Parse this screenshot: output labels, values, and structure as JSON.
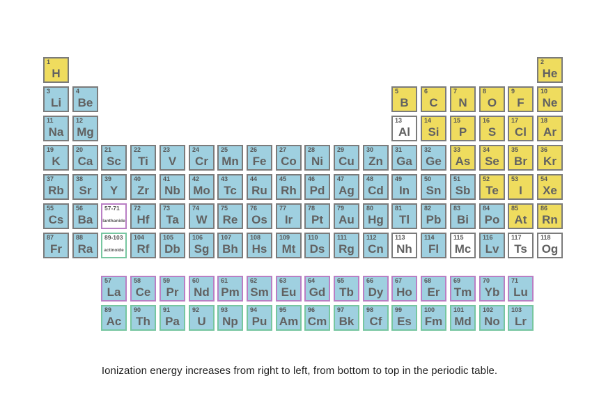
{
  "caption": "Ionization energy increases from right to left, from bottom to top in the periodic table.",
  "colors": {
    "nonmetal_yellow": "#efdc5e",
    "metal_blue": "#9fd0e0",
    "unknown_white": "#ffffff",
    "cell_border": "#7b7b7b",
    "lanthanide_border": "#b97fc4",
    "actinide_border": "#77c6a0",
    "number_text": "#555555",
    "symbol_text": "#616161",
    "caption_text": "#1f1f1f"
  },
  "placeholders": [
    {
      "range": "57-71",
      "label": "lanthanide",
      "row": 6,
      "col": 3,
      "type": "lan"
    },
    {
      "range": "89-103",
      "label": "actinoide",
      "row": 7,
      "col": 3,
      "type": "act"
    }
  ],
  "elements": [
    {
      "n": 1,
      "sym": "H",
      "row": 1,
      "col": 1,
      "c": "y"
    },
    {
      "n": 2,
      "sym": "He",
      "row": 1,
      "col": 18,
      "c": "y"
    },
    {
      "n": 3,
      "sym": "Li",
      "row": 2,
      "col": 1,
      "c": "b"
    },
    {
      "n": 4,
      "sym": "Be",
      "row": 2,
      "col": 2,
      "c": "b"
    },
    {
      "n": 5,
      "sym": "B",
      "row": 2,
      "col": 13,
      "c": "y"
    },
    {
      "n": 6,
      "sym": "C",
      "row": 2,
      "col": 14,
      "c": "y"
    },
    {
      "n": 7,
      "sym": "N",
      "row": 2,
      "col": 15,
      "c": "y"
    },
    {
      "n": 8,
      "sym": "O",
      "row": 2,
      "col": 16,
      "c": "y"
    },
    {
      "n": 9,
      "sym": "F",
      "row": 2,
      "col": 17,
      "c": "y"
    },
    {
      "n": 10,
      "sym": "Ne",
      "row": 2,
      "col": 18,
      "c": "y"
    },
    {
      "n": 11,
      "sym": "Na",
      "row": 3,
      "col": 1,
      "c": "b"
    },
    {
      "n": 12,
      "sym": "Mg",
      "row": 3,
      "col": 2,
      "c": "b"
    },
    {
      "n": 13,
      "sym": "Al",
      "row": 3,
      "col": 13,
      "c": "w"
    },
    {
      "n": 14,
      "sym": "Si",
      "row": 3,
      "col": 14,
      "c": "y"
    },
    {
      "n": 15,
      "sym": "P",
      "row": 3,
      "col": 15,
      "c": "y"
    },
    {
      "n": 16,
      "sym": "S",
      "row": 3,
      "col": 16,
      "c": "y"
    },
    {
      "n": 17,
      "sym": "Cl",
      "row": 3,
      "col": 17,
      "c": "y"
    },
    {
      "n": 18,
      "sym": "Ar",
      "row": 3,
      "col": 18,
      "c": "y"
    },
    {
      "n": 19,
      "sym": "K",
      "row": 4,
      "col": 1,
      "c": "b"
    },
    {
      "n": 20,
      "sym": "Ca",
      "row": 4,
      "col": 2,
      "c": "b"
    },
    {
      "n": 21,
      "sym": "Sc",
      "row": 4,
      "col": 3,
      "c": "b"
    },
    {
      "n": 22,
      "sym": "Ti",
      "row": 4,
      "col": 4,
      "c": "b"
    },
    {
      "n": 23,
      "sym": "V",
      "row": 4,
      "col": 5,
      "c": "b"
    },
    {
      "n": 24,
      "sym": "Cr",
      "row": 4,
      "col": 6,
      "c": "b"
    },
    {
      "n": 25,
      "sym": "Mn",
      "row": 4,
      "col": 7,
      "c": "b"
    },
    {
      "n": 26,
      "sym": "Fe",
      "row": 4,
      "col": 8,
      "c": "b"
    },
    {
      "n": 27,
      "sym": "Co",
      "row": 4,
      "col": 9,
      "c": "b"
    },
    {
      "n": 28,
      "sym": "Ni",
      "row": 4,
      "col": 10,
      "c": "b"
    },
    {
      "n": 29,
      "sym": "Cu",
      "row": 4,
      "col": 11,
      "c": "b"
    },
    {
      "n": 30,
      "sym": "Zn",
      "row": 4,
      "col": 12,
      "c": "b"
    },
    {
      "n": 31,
      "sym": "Ga",
      "row": 4,
      "col": 13,
      "c": "b"
    },
    {
      "n": 32,
      "sym": "Ge",
      "row": 4,
      "col": 14,
      "c": "b"
    },
    {
      "n": 33,
      "sym": "As",
      "row": 4,
      "col": 15,
      "c": "y"
    },
    {
      "n": 34,
      "sym": "Se",
      "row": 4,
      "col": 16,
      "c": "y"
    },
    {
      "n": 35,
      "sym": "Br",
      "row": 4,
      "col": 17,
      "c": "y"
    },
    {
      "n": 36,
      "sym": "Kr",
      "row": 4,
      "col": 18,
      "c": "y"
    },
    {
      "n": 37,
      "sym": "Rb",
      "row": 5,
      "col": 1,
      "c": "b"
    },
    {
      "n": 38,
      "sym": "Sr",
      "row": 5,
      "col": 2,
      "c": "b"
    },
    {
      "n": 39,
      "sym": "Y",
      "row": 5,
      "col": 3,
      "c": "b"
    },
    {
      "n": 40,
      "sym": "Zr",
      "row": 5,
      "col": 4,
      "c": "b"
    },
    {
      "n": 41,
      "sym": "Nb",
      "row": 5,
      "col": 5,
      "c": "b"
    },
    {
      "n": 42,
      "sym": "Mo",
      "row": 5,
      "col": 6,
      "c": "b"
    },
    {
      "n": 43,
      "sym": "Tc",
      "row": 5,
      "col": 7,
      "c": "b"
    },
    {
      "n": 44,
      "sym": "Ru",
      "row": 5,
      "col": 8,
      "c": "b"
    },
    {
      "n": 45,
      "sym": "Rh",
      "row": 5,
      "col": 9,
      "c": "b"
    },
    {
      "n": 46,
      "sym": "Pd",
      "row": 5,
      "col": 10,
      "c": "b"
    },
    {
      "n": 47,
      "sym": "Ag",
      "row": 5,
      "col": 11,
      "c": "b"
    },
    {
      "n": 48,
      "sym": "Cd",
      "row": 5,
      "col": 12,
      "c": "b"
    },
    {
      "n": 49,
      "sym": "In",
      "row": 5,
      "col": 13,
      "c": "b"
    },
    {
      "n": 50,
      "sym": "Sn",
      "row": 5,
      "col": 14,
      "c": "b"
    },
    {
      "n": 51,
      "sym": "Sb",
      "row": 5,
      "col": 15,
      "c": "b"
    },
    {
      "n": 52,
      "sym": "Te",
      "row": 5,
      "col": 16,
      "c": "y"
    },
    {
      "n": 53,
      "sym": "I",
      "row": 5,
      "col": 17,
      "c": "y"
    },
    {
      "n": 54,
      "sym": "Xe",
      "row": 5,
      "col": 18,
      "c": "y"
    },
    {
      "n": 55,
      "sym": "Cs",
      "row": 6,
      "col": 1,
      "c": "b"
    },
    {
      "n": 56,
      "sym": "Ba",
      "row": 6,
      "col": 2,
      "c": "b"
    },
    {
      "n": 72,
      "sym": "Hf",
      "row": 6,
      "col": 4,
      "c": "b"
    },
    {
      "n": 73,
      "sym": "Ta",
      "row": 6,
      "col": 5,
      "c": "b"
    },
    {
      "n": 74,
      "sym": "W",
      "row": 6,
      "col": 6,
      "c": "b"
    },
    {
      "n": 75,
      "sym": "Re",
      "row": 6,
      "col": 7,
      "c": "b"
    },
    {
      "n": 76,
      "sym": "Os",
      "row": 6,
      "col": 8,
      "c": "b"
    },
    {
      "n": 77,
      "sym": "Ir",
      "row": 6,
      "col": 9,
      "c": "b"
    },
    {
      "n": 78,
      "sym": "Pt",
      "row": 6,
      "col": 10,
      "c": "b"
    },
    {
      "n": 79,
      "sym": "Au",
      "row": 6,
      "col": 11,
      "c": "b"
    },
    {
      "n": 80,
      "sym": "Hg",
      "row": 6,
      "col": 12,
      "c": "b"
    },
    {
      "n": 81,
      "sym": "Tl",
      "row": 6,
      "col": 13,
      "c": "b"
    },
    {
      "n": 82,
      "sym": "Pb",
      "row": 6,
      "col": 14,
      "c": "b"
    },
    {
      "n": 83,
      "sym": "Bi",
      "row": 6,
      "col": 15,
      "c": "b"
    },
    {
      "n": 84,
      "sym": "Po",
      "row": 6,
      "col": 16,
      "c": "b"
    },
    {
      "n": 85,
      "sym": "At",
      "row": 6,
      "col": 17,
      "c": "y"
    },
    {
      "n": 86,
      "sym": "Rn",
      "row": 6,
      "col": 18,
      "c": "y"
    },
    {
      "n": 87,
      "sym": "Fr",
      "row": 7,
      "col": 1,
      "c": "b"
    },
    {
      "n": 88,
      "sym": "Ra",
      "row": 7,
      "col": 2,
      "c": "b"
    },
    {
      "n": 104,
      "sym": "Rf",
      "row": 7,
      "col": 4,
      "c": "b"
    },
    {
      "n": 105,
      "sym": "Db",
      "row": 7,
      "col": 5,
      "c": "b"
    },
    {
      "n": 106,
      "sym": "Sg",
      "row": 7,
      "col": 6,
      "c": "b"
    },
    {
      "n": 107,
      "sym": "Bh",
      "row": 7,
      "col": 7,
      "c": "b"
    },
    {
      "n": 108,
      "sym": "Hs",
      "row": 7,
      "col": 8,
      "c": "b"
    },
    {
      "n": 109,
      "sym": "Mt",
      "row": 7,
      "col": 9,
      "c": "b"
    },
    {
      "n": 110,
      "sym": "Ds",
      "row": 7,
      "col": 10,
      "c": "b"
    },
    {
      "n": 111,
      "sym": "Rg",
      "row": 7,
      "col": 11,
      "c": "b"
    },
    {
      "n": 112,
      "sym": "Cn",
      "row": 7,
      "col": 12,
      "c": "b"
    },
    {
      "n": 113,
      "sym": "Nh",
      "row": 7,
      "col": 13,
      "c": "w"
    },
    {
      "n": 114,
      "sym": "Fl",
      "row": 7,
      "col": 14,
      "c": "b"
    },
    {
      "n": 115,
      "sym": "Mc",
      "row": 7,
      "col": 15,
      "c": "w"
    },
    {
      "n": 116,
      "sym": "Lv",
      "row": 7,
      "col": 16,
      "c": "b"
    },
    {
      "n": 117,
      "sym": "Ts",
      "row": 7,
      "col": 17,
      "c": "w"
    },
    {
      "n": 118,
      "sym": "Og",
      "row": 7,
      "col": 18,
      "c": "w"
    },
    {
      "n": 57,
      "sym": "La",
      "row": 8,
      "col": 3,
      "c": "b",
      "s": "lan"
    },
    {
      "n": 58,
      "sym": "Ce",
      "row": 8,
      "col": 4,
      "c": "b",
      "s": "lan"
    },
    {
      "n": 59,
      "sym": "Pr",
      "row": 8,
      "col": 5,
      "c": "b",
      "s": "lan"
    },
    {
      "n": 60,
      "sym": "Nd",
      "row": 8,
      "col": 6,
      "c": "b",
      "s": "lan"
    },
    {
      "n": 61,
      "sym": "Pm",
      "row": 8,
      "col": 7,
      "c": "b",
      "s": "lan"
    },
    {
      "n": 62,
      "sym": "Sm",
      "row": 8,
      "col": 8,
      "c": "b",
      "s": "lan"
    },
    {
      "n": 63,
      "sym": "Eu",
      "row": 8,
      "col": 9,
      "c": "b",
      "s": "lan"
    },
    {
      "n": 64,
      "sym": "Gd",
      "row": 8,
      "col": 10,
      "c": "b",
      "s": "lan"
    },
    {
      "n": 65,
      "sym": "Tb",
      "row": 8,
      "col": 11,
      "c": "b",
      "s": "lan"
    },
    {
      "n": 66,
      "sym": "Dy",
      "row": 8,
      "col": 12,
      "c": "b",
      "s": "lan"
    },
    {
      "n": 67,
      "sym": "Ho",
      "row": 8,
      "col": 13,
      "c": "b",
      "s": "lan"
    },
    {
      "n": 68,
      "sym": "Er",
      "row": 8,
      "col": 14,
      "c": "b",
      "s": "lan"
    },
    {
      "n": 69,
      "sym": "Tm",
      "row": 8,
      "col": 15,
      "c": "b",
      "s": "lan"
    },
    {
      "n": 70,
      "sym": "Yb",
      "row": 8,
      "col": 16,
      "c": "b",
      "s": "lan"
    },
    {
      "n": 71,
      "sym": "Lu",
      "row": 8,
      "col": 17,
      "c": "b",
      "s": "lan"
    },
    {
      "n": 89,
      "sym": "Ac",
      "row": 9,
      "col": 3,
      "c": "b",
      "s": "act"
    },
    {
      "n": 90,
      "sym": "Th",
      "row": 9,
      "col": 4,
      "c": "b",
      "s": "act"
    },
    {
      "n": 91,
      "sym": "Pa",
      "row": 9,
      "col": 5,
      "c": "b",
      "s": "act"
    },
    {
      "n": 92,
      "sym": "U",
      "row": 9,
      "col": 6,
      "c": "b",
      "s": "act"
    },
    {
      "n": 93,
      "sym": "Np",
      "row": 9,
      "col": 7,
      "c": "b",
      "s": "act"
    },
    {
      "n": 94,
      "sym": "Pu",
      "row": 9,
      "col": 8,
      "c": "b",
      "s": "act"
    },
    {
      "n": 95,
      "sym": "Am",
      "row": 9,
      "col": 9,
      "c": "b",
      "s": "act"
    },
    {
      "n": 96,
      "sym": "Cm",
      "row": 9,
      "col": 10,
      "c": "b",
      "s": "act"
    },
    {
      "n": 97,
      "sym": "Bk",
      "row": 9,
      "col": 11,
      "c": "b",
      "s": "act"
    },
    {
      "n": 98,
      "sym": "Cf",
      "row": 9,
      "col": 12,
      "c": "b",
      "s": "act"
    },
    {
      "n": 99,
      "sym": "Es",
      "row": 9,
      "col": 13,
      "c": "b",
      "s": "act"
    },
    {
      "n": 100,
      "sym": "Fm",
      "row": 9,
      "col": 14,
      "c": "b",
      "s": "act"
    },
    {
      "n": 101,
      "sym": "Md",
      "row": 9,
      "col": 15,
      "c": "b",
      "s": "act"
    },
    {
      "n": 102,
      "sym": "No",
      "row": 9,
      "col": 16,
      "c": "b",
      "s": "act"
    },
    {
      "n": 103,
      "sym": "Lr",
      "row": 9,
      "col": 17,
      "c": "b",
      "s": "act"
    }
  ]
}
